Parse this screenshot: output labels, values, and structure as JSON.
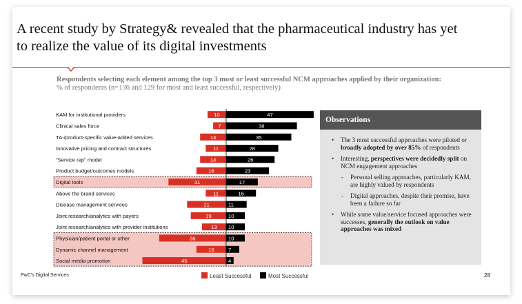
{
  "slide": {
    "title": "A recent study by Strategy& revealed that the pharmaceutical industry has yet to realize the value of its digital investments",
    "subtitle_bold": "Respondents selecting each element among the top 3 most or least successful NCM approaches applied by their organization:",
    "subtitle_rest": " % of respondents (n=136 and 129 for most and least successful, respectively)",
    "footer": "PwC's Digital Services",
    "page_number": "28"
  },
  "chart_data": {
    "type": "bar",
    "orientation": "horizontal-diverging",
    "categories": [
      "KAM for institutional providers",
      "Clinical sales force",
      "TA-/product-specific value-added services",
      "Innovative pricing and contract structures",
      "\"Service rep\" model",
      "Product budget/outcomes models",
      "Digital tools",
      "Above the brand services",
      "Disease management services",
      "Joint research/analytics with payers",
      "Joint research/analytics with provider institutions",
      "Physician/patient portal or other",
      "Dynamic channel management",
      "Social media promotion"
    ],
    "series": [
      {
        "name": "Least Successful",
        "color": "#d93025",
        "values": [
          10,
          7,
          14,
          11,
          14,
          16,
          31,
          11,
          21,
          19,
          13,
          36,
          16,
          45
        ]
      },
      {
        "name": "Most Successful",
        "color": "#000000",
        "values": [
          47,
          38,
          35,
          28,
          26,
          23,
          17,
          16,
          11,
          10,
          10,
          10,
          7,
          4
        ]
      }
    ],
    "highlighted_categories": [
      "Digital tools",
      "Physician/patient portal or other",
      "Dynamic channel management",
      "Social media promotion"
    ],
    "highlight_color": "#f4c7c3",
    "legend_position": "bottom"
  },
  "observations": {
    "heading": "Observations",
    "b1_pre": "The 3 most successful approaches were piloted or ",
    "b1_bold": "broadly adopted by over 85%",
    "b1_post": " of respondents",
    "b2_pre": "Interesting, ",
    "b2_bold": "perspectives were decidedly split",
    "b2_post": " on NCM engagement approaches",
    "d1": "Personal selling approaches, particularly KAM, are highly valued by respondents",
    "d2": "Digital approaches, despite their promise, have been a failure so far",
    "b3_pre": "While some value/service focused approaches were successes, ",
    "b3_bold": "generally the outlook on value approaches was mixed"
  }
}
